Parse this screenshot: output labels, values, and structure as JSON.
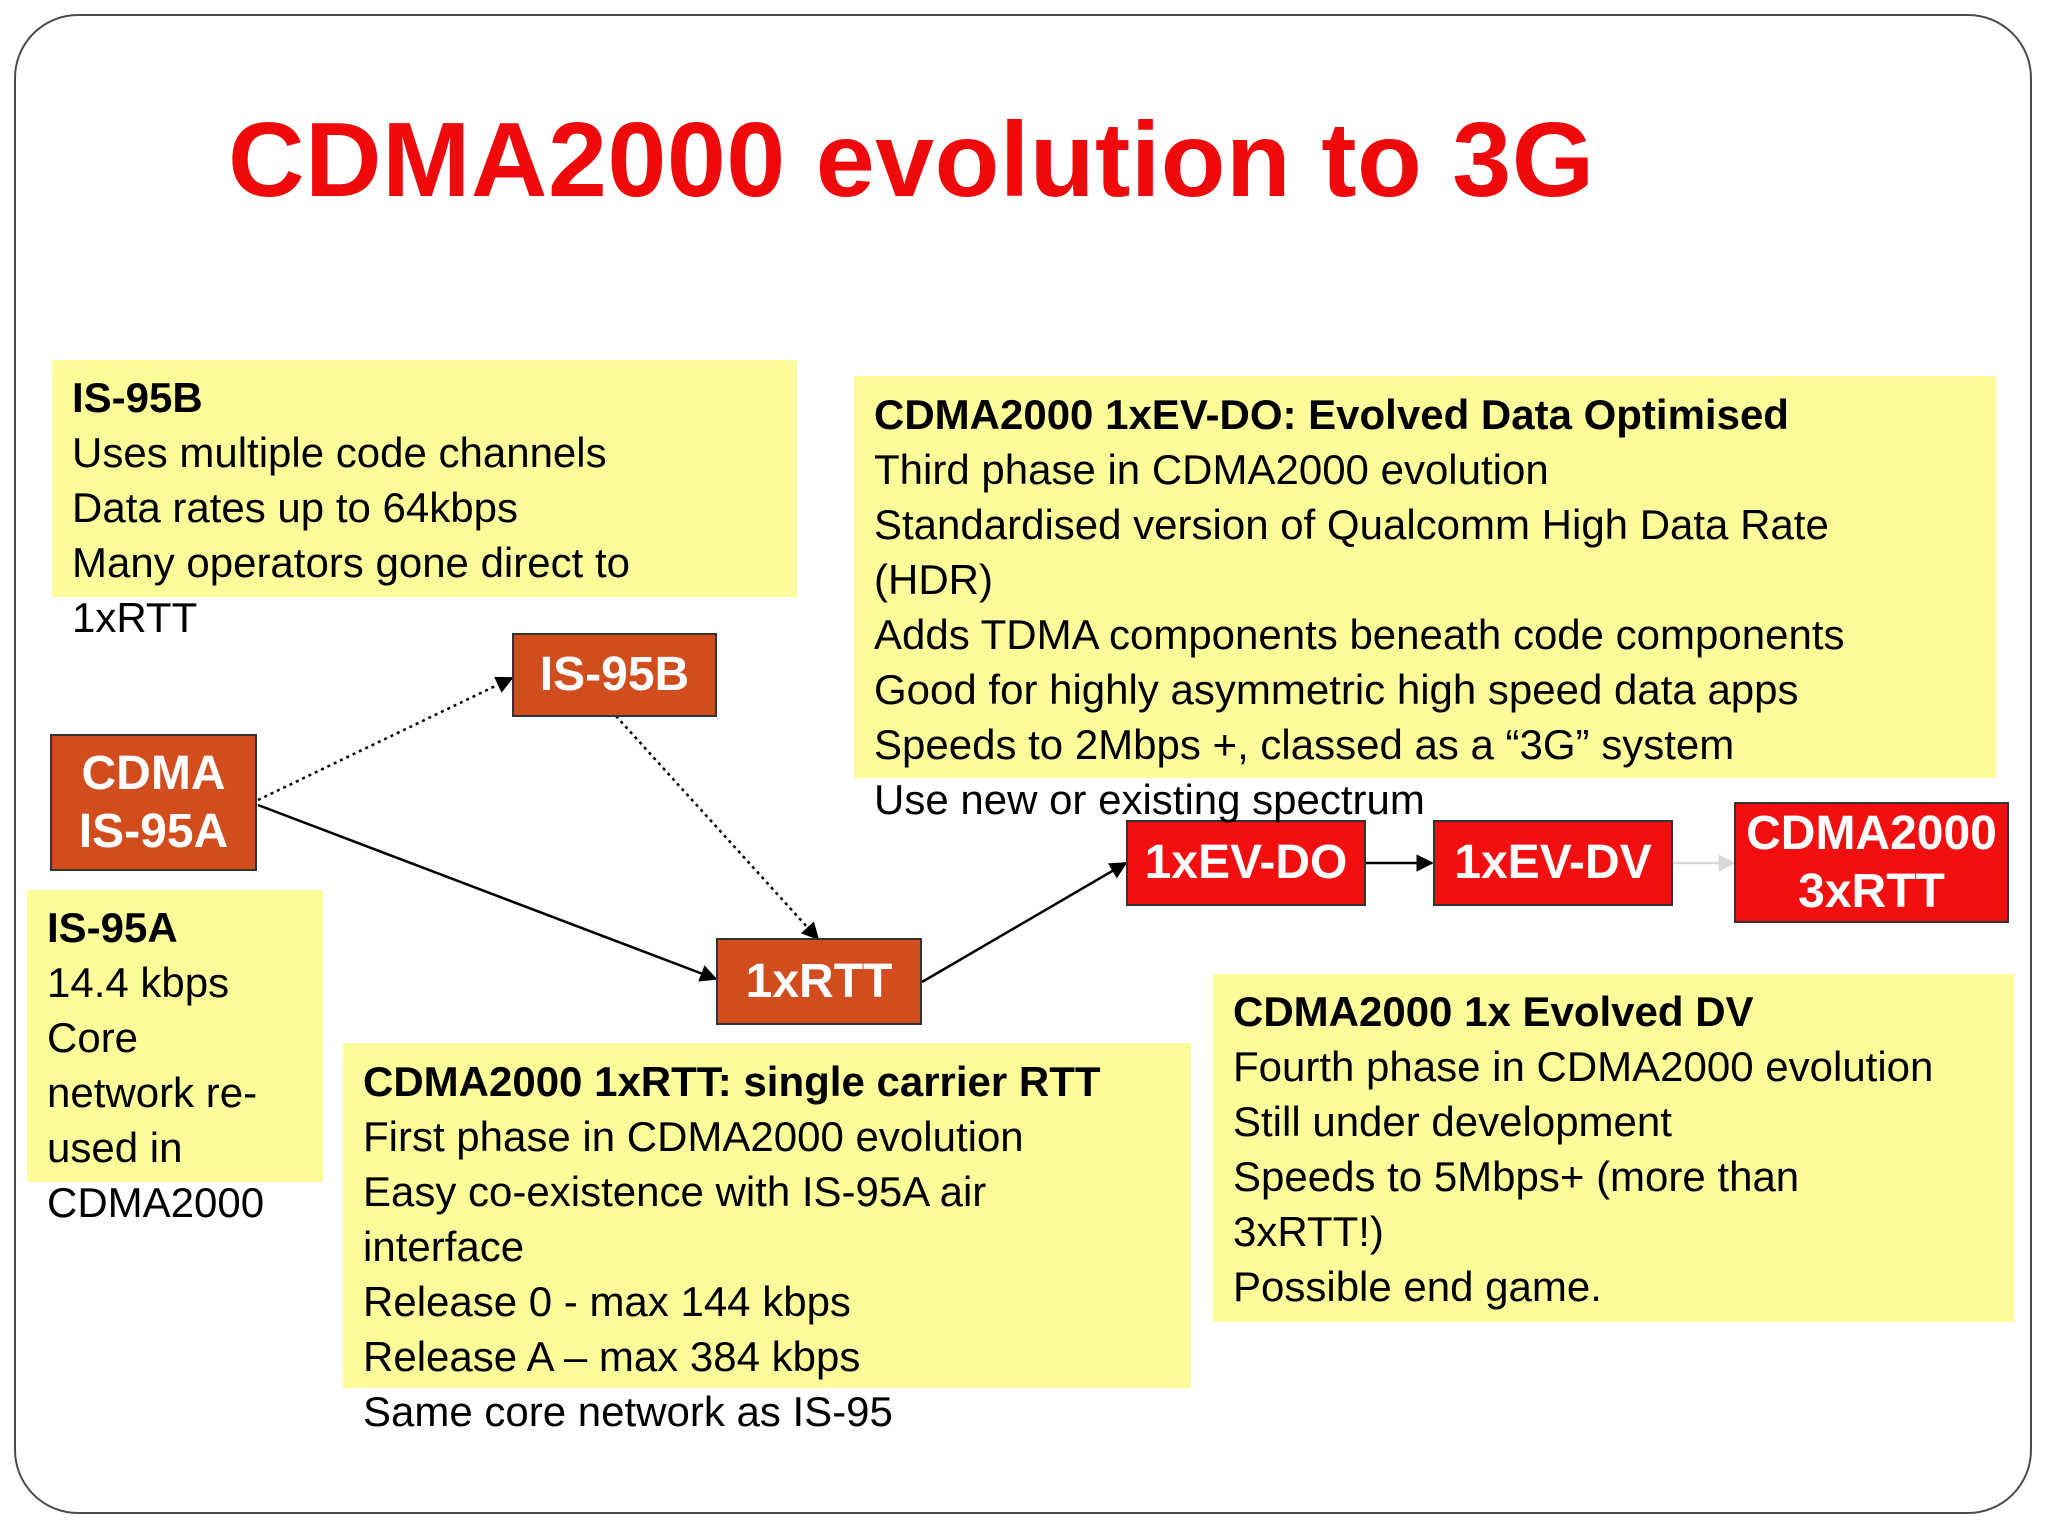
{
  "title": "CDMA2000 evolution to 3G",
  "nodes": {
    "cdma_is95a": {
      "line1": "CDMA",
      "line2": "IS-95A"
    },
    "is95b": "IS-95B",
    "rtt1x": "1xRTT",
    "ev_do": "1xEV-DO",
    "ev_dv": "1xEV-DV",
    "rtt3x": {
      "line1": "CDMA2000",
      "line2": "3xRTT"
    }
  },
  "notes": {
    "is95b": {
      "heading": "IS-95B",
      "lines": [
        "Uses multiple code channels",
        "Data rates up to 64kbps",
        "Many operators gone direct to",
        "1xRTT"
      ]
    },
    "is95a": {
      "heading": "IS-95A",
      "lines": [
        "14.4 kbps",
        "Core",
        "network re-",
        "used in",
        "CDMA2000"
      ]
    },
    "evdo": {
      "heading": "CDMA2000 1xEV-DO: Evolved Data Optimised",
      "lines": [
        "Third phase in CDMA2000 evolution",
        "Standardised version of Qualcomm High Data Rate",
        "(HDR)",
        "Adds TDMA components beneath code components",
        "Good for highly asymmetric high speed data apps",
        "Speeds to 2Mbps +, classed as a “3G” system",
        "Use new or existing spectrum"
      ]
    },
    "rtt1x": {
      "heading": "CDMA2000 1xRTT: single carrier RTT",
      "lines": [
        "First phase in CDMA2000 evolution",
        "Easy co-existence with IS-95A air",
        "interface",
        "Release 0 - max 144 kbps",
        "Release A – max 384 kbps",
        "Same core network as IS-95"
      ]
    },
    "evdv": {
      "heading": "CDMA2000 1x Evolved DV",
      "lines": [
        "Fourth phase in CDMA2000 evolution",
        "Still under development",
        "Speeds to 5Mbps+ (more than",
        "3xRTT!)",
        "Possible end game."
      ]
    }
  },
  "colors": {
    "title": "#ee0a0a",
    "note_fill": "#fbfb99",
    "node_orange": "#d24d1e",
    "node_red": "#f20f0f"
  }
}
